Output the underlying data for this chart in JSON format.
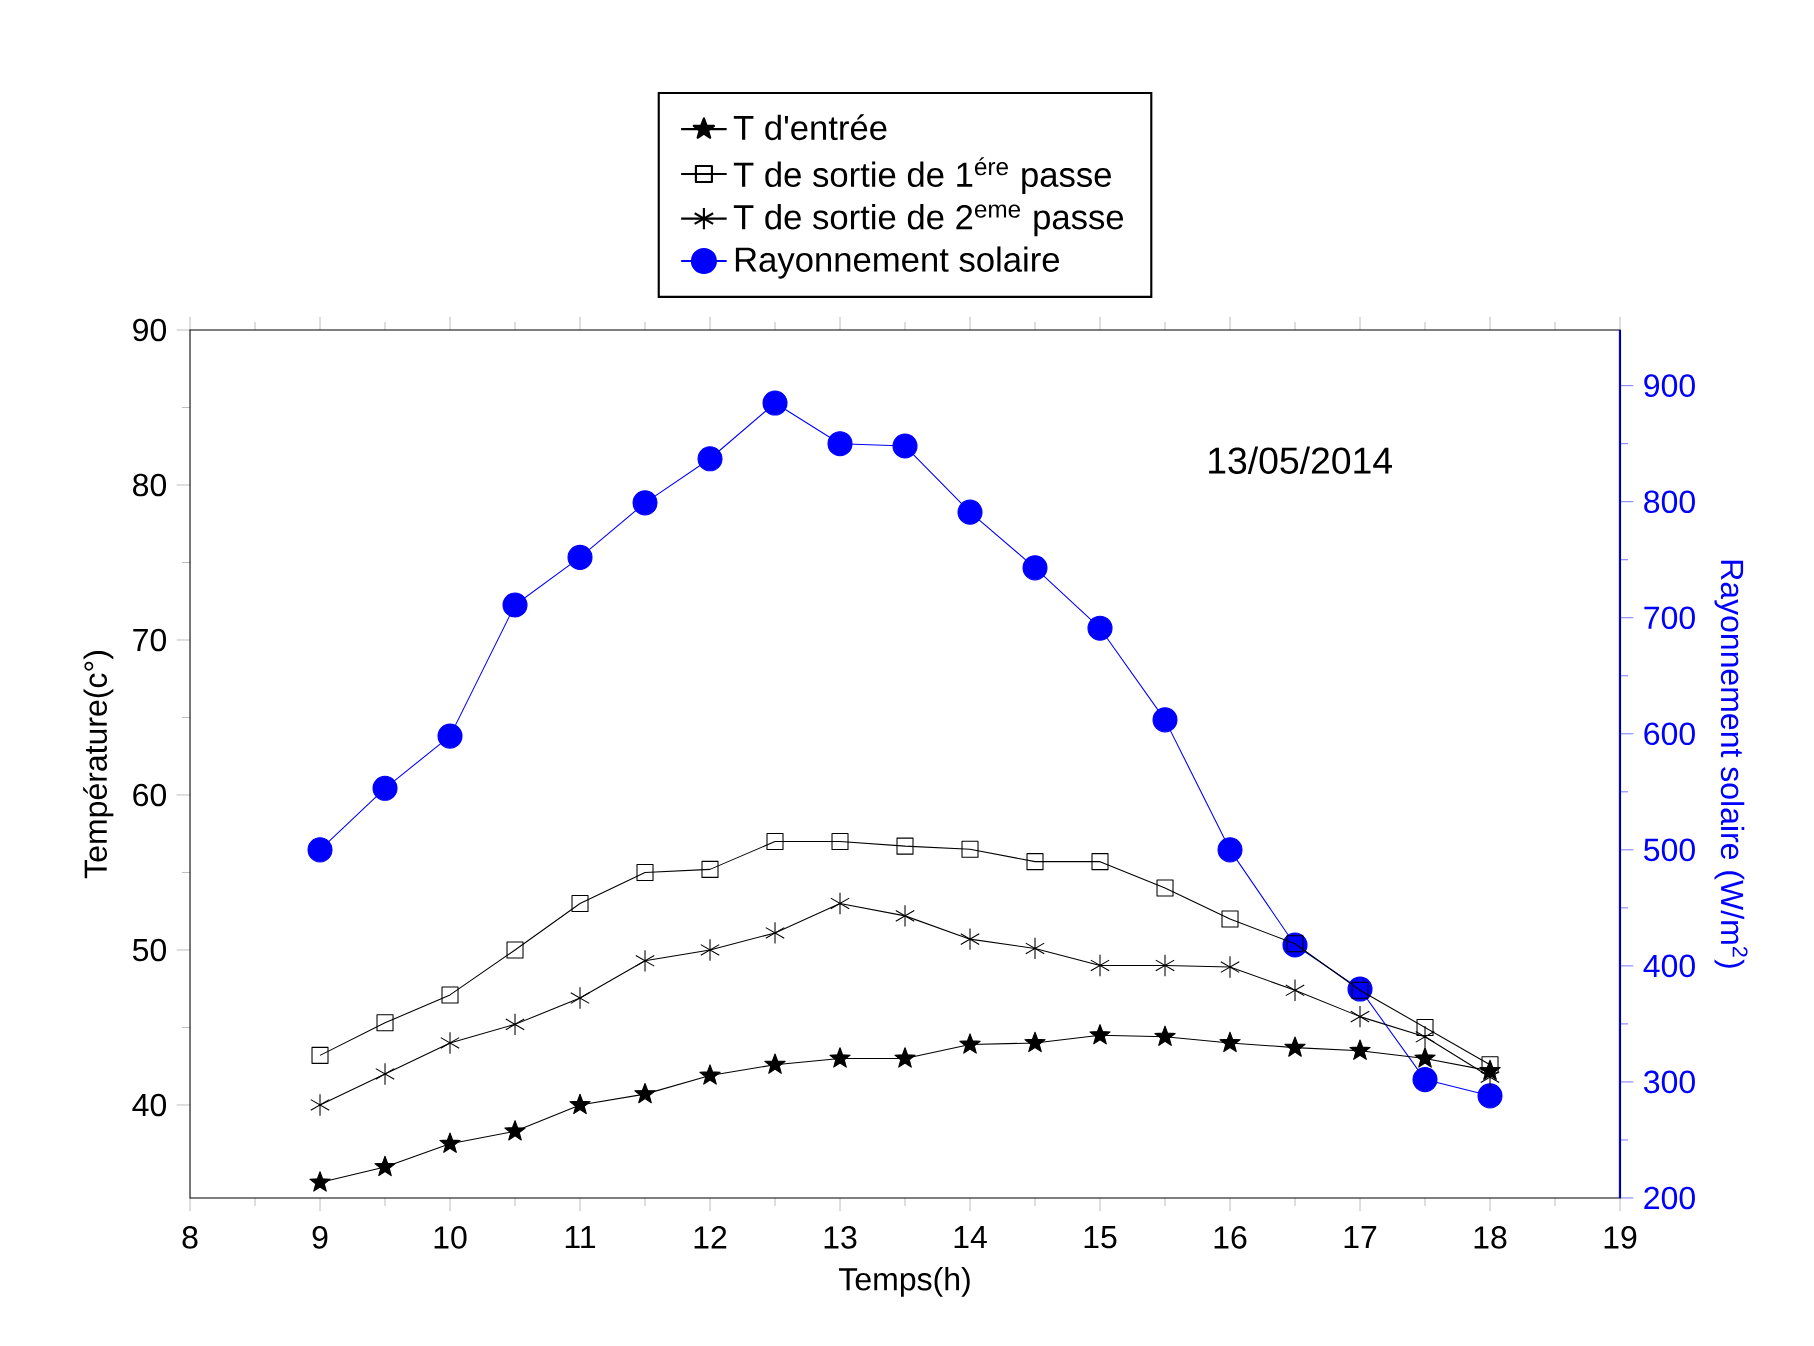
{
  "chart_data": {
    "type": "line",
    "xlabel": "Temps(h)",
    "ylabel": "Température(c°)",
    "y2label": "Rayonnement solaire (W/m$^{2}$)",
    "x": [
      9,
      9.5,
      10,
      10.5,
      11,
      11.5,
      12,
      12.5,
      13,
      13.5,
      14,
      14.5,
      15,
      15.5,
      16,
      16.5,
      17,
      17.5,
      18
    ],
    "series": [
      {
        "name": "T d'entrée",
        "color": "#000000",
        "marker": "star",
        "values": [
          35.0,
          36.0,
          37.5,
          38.3,
          40.0,
          40.7,
          41.9,
          42.6,
          43.0,
          43.0,
          43.9,
          44.0,
          44.5,
          44.4,
          44.0,
          43.7,
          43.5,
          43.0,
          42.2
        ]
      },
      {
        "name": "T de sortie de 1$^{ére}$ passe",
        "color": "#000000",
        "marker": "square",
        "values": [
          43.2,
          45.3,
          47.1,
          50.0,
          53.0,
          55.0,
          55.2,
          57.0,
          57.0,
          56.7,
          56.5,
          55.7,
          55.7,
          54.0,
          52.0,
          50.4,
          47.4,
          45.0,
          42.6
        ]
      },
      {
        "name": "T de sortie de 2$^{eme}$ passe",
        "color": "#000000",
        "marker": "cross",
        "values": [
          40.0,
          42.0,
          44.0,
          45.2,
          46.9,
          49.3,
          50.0,
          51.1,
          53.0,
          52.2,
          50.7,
          50.1,
          49.0,
          49.0,
          48.9,
          47.4,
          45.7,
          44.4,
          41.8
        ]
      },
      {
        "name": "Rayonnement solaire",
        "color": "#0000ff",
        "marker": "circle",
        "axis": "y2",
        "values": [
          500,
          553,
          598,
          711,
          752,
          799,
          837,
          885,
          850,
          848,
          791,
          743,
          691,
          612,
          500,
          418,
          380,
          302,
          288
        ]
      }
    ],
    "xlim": [
      8,
      19
    ],
    "xticks": [
      8,
      9,
      10,
      11,
      12,
      13,
      14,
      15,
      16,
      17,
      18,
      19
    ],
    "ylim": [
      34,
      90
    ],
    "yticks": [
      40,
      50,
      60,
      70,
      80,
      90
    ],
    "y2lim": [
      200,
      948
    ],
    "y2ticks": [
      200,
      300,
      400,
      500,
      600,
      700,
      800,
      900
    ],
    "legend": "top",
    "annotations": [
      "13/05/2014"
    ]
  }
}
